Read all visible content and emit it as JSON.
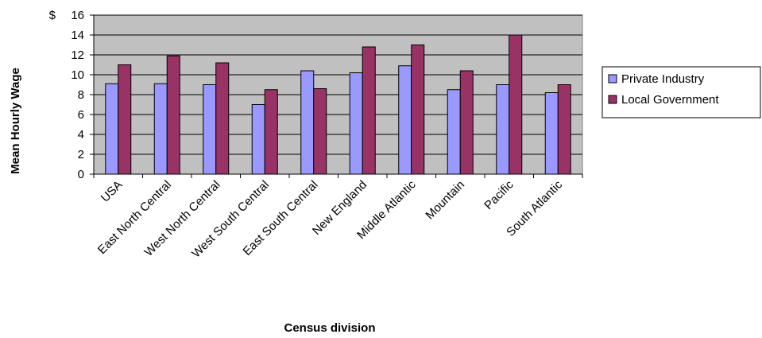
{
  "chart_data": {
    "type": "bar",
    "title": "",
    "xlabel": "Census division",
    "ylabel": "Mean Hourly Wage",
    "y_unit_label": "$",
    "ylim": [
      0,
      16
    ],
    "y_ticks": [
      0,
      2,
      4,
      6,
      8,
      10,
      12,
      14,
      16
    ],
    "grid": true,
    "legend_position": "right",
    "categories": [
      "USA",
      "East North Central",
      "West North Central",
      "West South Central",
      "East South Central",
      "New England",
      "Middle Atlantic",
      "Mountain",
      "Pacific",
      "South Atlantic"
    ],
    "series": [
      {
        "name": "Private Industry",
        "color": "#9999ff",
        "values": [
          9.1,
          9.1,
          9.0,
          7.0,
          10.4,
          10.2,
          10.9,
          8.5,
          9.0,
          8.2
        ]
      },
      {
        "name": "Local Government",
        "color": "#993366",
        "values": [
          11.0,
          11.9,
          11.2,
          8.5,
          8.6,
          12.8,
          13.0,
          10.4,
          14.0,
          9.0
        ]
      }
    ],
    "colors": {
      "plot_background": "#c0c0c0",
      "gridline": "#000000"
    }
  }
}
